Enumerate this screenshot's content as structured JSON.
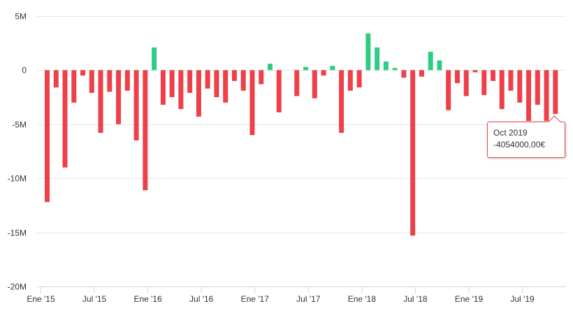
{
  "chart_data": {
    "type": "bar",
    "title": "",
    "xlabel": "",
    "ylabel": "",
    "ylim": [
      -20000000,
      5000000
    ],
    "y_ticks": [
      {
        "value": 5000000,
        "label": "5M"
      },
      {
        "value": 0,
        "label": "0"
      },
      {
        "value": -5000000,
        "label": "-5M"
      },
      {
        "value": -10000000,
        "label": "-10M"
      },
      {
        "value": -15000000,
        "label": "-15M"
      },
      {
        "value": -20000000,
        "label": "-20M"
      }
    ],
    "x_ticks": [
      "Ene '15",
      "Jul '15",
      "Ene '16",
      "Jul '16",
      "Ene '17",
      "Jul '17",
      "Ene '18",
      "Jul '18",
      "Ene '19",
      "Jul '19"
    ],
    "categories": [
      "Jan 2015",
      "Feb 2015",
      "Mar 2015",
      "Apr 2015",
      "May 2015",
      "Jun 2015",
      "Jul 2015",
      "Aug 2015",
      "Sep 2015",
      "Oct 2015",
      "Nov 2015",
      "Dec 2015",
      "Jan 2016",
      "Feb 2016",
      "Mar 2016",
      "Apr 2016",
      "May 2016",
      "Jun 2016",
      "Jul 2016",
      "Aug 2016",
      "Sep 2016",
      "Oct 2016",
      "Nov 2016",
      "Dec 2016",
      "Jan 2017",
      "Feb 2017",
      "Mar 2017",
      "Apr 2017",
      "May 2017",
      "Jun 2017",
      "Jul 2017",
      "Aug 2017",
      "Sep 2017",
      "Oct 2017",
      "Nov 2017",
      "Dec 2017",
      "Jan 2018",
      "Feb 2018",
      "Mar 2018",
      "Apr 2018",
      "May 2018",
      "Jun 2018",
      "Jul 2018",
      "Aug 2018",
      "Sep 2018",
      "Oct 2018",
      "Nov 2018",
      "Dec 2018",
      "Jan 2019",
      "Feb 2019",
      "Mar 2019",
      "Apr 2019",
      "May 2019",
      "Jun 2019",
      "Jul 2019",
      "Aug 2019",
      "Sep 2019",
      "Oct 2019"
    ],
    "values": [
      -12200000,
      -1600000,
      -9000000,
      -3000000,
      -500000,
      -2100000,
      -5800000,
      -2000000,
      -5000000,
      -1900000,
      -6500000,
      -11100000,
      2100000,
      -3200000,
      -2500000,
      -3600000,
      -2100000,
      -4300000,
      -1700000,
      -2500000,
      -3000000,
      -1000000,
      -1900000,
      -6000000,
      -1300000,
      600000,
      -3900000,
      0,
      -2400000,
      300000,
      -2600000,
      -500000,
      400000,
      -5800000,
      -1900000,
      -1600000,
      3400000,
      2100000,
      800000,
      200000,
      -700000,
      -15300000,
      -600000,
      1700000,
      900000,
      -3700000,
      -1200000,
      -2400000,
      -200000,
      -2300000,
      -1000000,
      -3600000,
      -1900000,
      -3000000,
      -4700000,
      -3200000,
      -4700000,
      -4054000
    ],
    "positive_color": "#2ecc85",
    "negative_color": "#ee4048",
    "grid": true,
    "highlighted_index": 57
  },
  "tooltip": {
    "title": "Oct 2019",
    "value": "-4054000,00€"
  }
}
